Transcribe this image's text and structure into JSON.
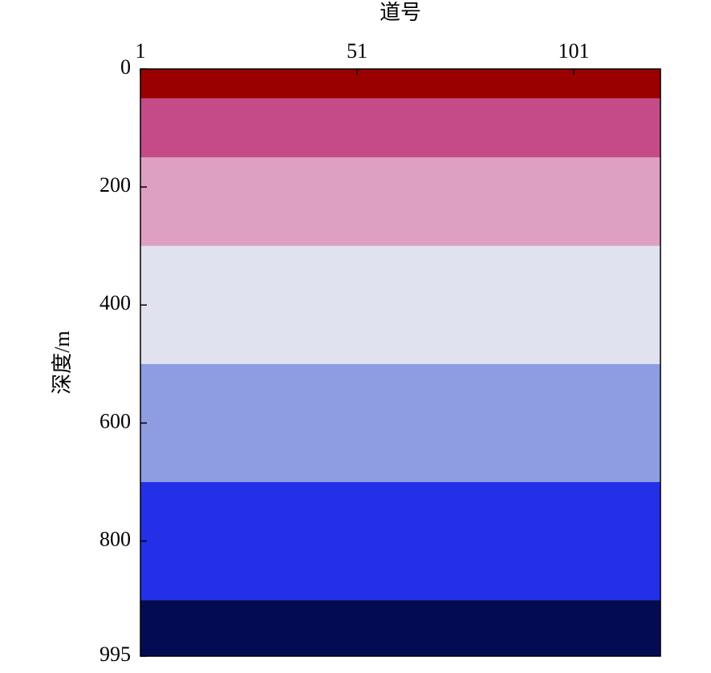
{
  "chart_data": {
    "type": "layers",
    "xlabel": "道号",
    "ylabel": "深度/m",
    "xlim": [
      1,
      121
    ],
    "xticks": [
      1,
      51,
      101
    ],
    "ylim": [
      0,
      995
    ],
    "yticks": [
      0,
      200,
      400,
      600,
      800,
      995
    ],
    "boundaries": [
      0,
      50,
      150,
      300,
      500,
      700,
      900,
      995
    ],
    "colors": [
      "#9b0000",
      "#c44b88",
      "#dea0c2",
      "#e0e3ef",
      "#8e9ce2",
      "#2430e8",
      "#030c52"
    ]
  }
}
